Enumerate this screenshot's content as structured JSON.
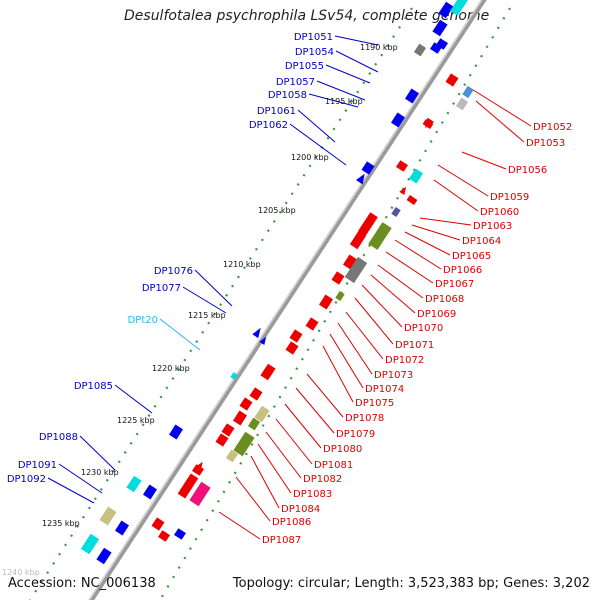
{
  "header": {
    "title": "Desulfotalea psychrophila LSv54, complete genome"
  },
  "footer": {
    "accession": "Accession: NC_006138",
    "topology": "Topology: circular; Length: 3,523,383 bp; Genes: 3,202"
  },
  "colors": {
    "left_label": "#0000cc",
    "right_label": "#dd0000",
    "trna_label": "#22bbee",
    "backbone": "#888888",
    "tick": "#3a9a3a"
  },
  "kbp_marks": [
    {
      "text": "1190 kbp"
    },
    {
      "text": "1195 kbp"
    },
    {
      "text": "1200 kbp"
    },
    {
      "text": "1205 kbp"
    },
    {
      "text": "1210 kbp"
    },
    {
      "text": "1215 kbp"
    },
    {
      "text": "1220 kbp"
    },
    {
      "text": "1225 kbp"
    },
    {
      "text": "1230 kbp"
    },
    {
      "text": "1235 kbp"
    },
    {
      "text": "1240 kbp"
    }
  ],
  "left_labels": [
    {
      "text": "DP1051",
      "kind": "gene"
    },
    {
      "text": "DP1054",
      "kind": "gene"
    },
    {
      "text": "DP1055",
      "kind": "gene"
    },
    {
      "text": "DP1057",
      "kind": "gene"
    },
    {
      "text": "DP1058",
      "kind": "gene"
    },
    {
      "text": "DP1061",
      "kind": "gene"
    },
    {
      "text": "DP1062",
      "kind": "gene"
    },
    {
      "text": "DP1076",
      "kind": "gene"
    },
    {
      "text": "DP1077",
      "kind": "gene"
    },
    {
      "text": "DPt20",
      "kind": "trna"
    },
    {
      "text": "DP1085",
      "kind": "gene"
    },
    {
      "text": "DP1088",
      "kind": "gene"
    },
    {
      "text": "DP1091",
      "kind": "gene"
    },
    {
      "text": "DP1092",
      "kind": "gene"
    }
  ],
  "right_labels": [
    {
      "text": "DP1052"
    },
    {
      "text": "DP1053"
    },
    {
      "text": "DP1056"
    },
    {
      "text": "DP1059"
    },
    {
      "text": "DP1060"
    },
    {
      "text": "DP1063"
    },
    {
      "text": "DP1064"
    },
    {
      "text": "DP1065"
    },
    {
      "text": "DP1066"
    },
    {
      "text": "DP1067"
    },
    {
      "text": "DP1068"
    },
    {
      "text": "DP1069"
    },
    {
      "text": "DP1070"
    },
    {
      "text": "DP1071"
    },
    {
      "text": "DP1072"
    },
    {
      "text": "DP1073"
    },
    {
      "text": "DP1074"
    },
    {
      "text": "DP1075"
    },
    {
      "text": "DP1078"
    },
    {
      "text": "DP1079"
    },
    {
      "text": "DP1080"
    },
    {
      "text": "DP1081"
    },
    {
      "text": "DP1082"
    },
    {
      "text": "DP1083"
    },
    {
      "text": "DP1084"
    },
    {
      "text": "DP1086"
    },
    {
      "text": "DP1087"
    }
  ]
}
